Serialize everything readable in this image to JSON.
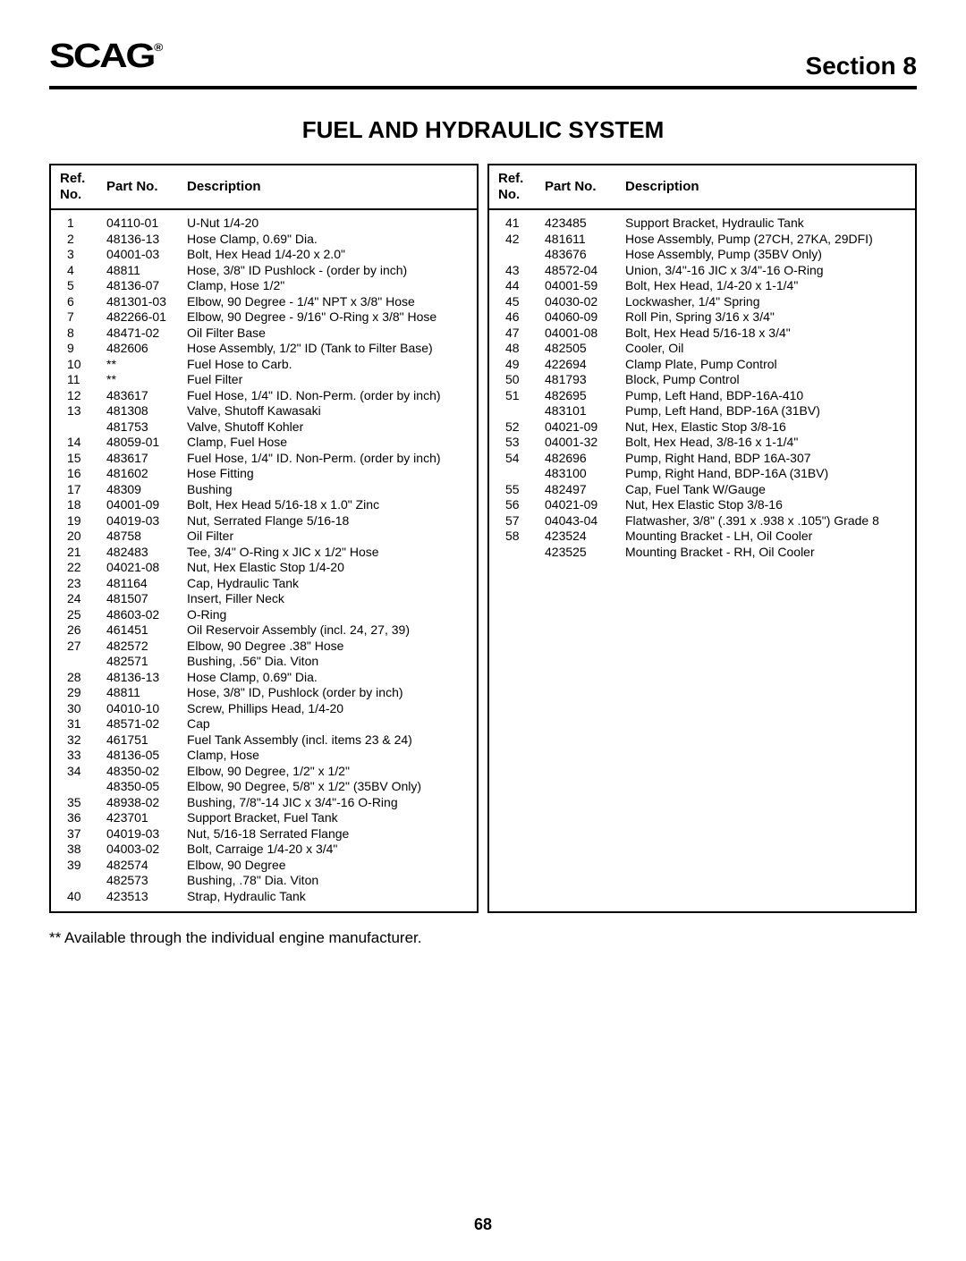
{
  "header": {
    "logo_text": "SCAG",
    "section_label": "Section 8"
  },
  "title": "FUEL AND HYDRAULIC SYSTEM",
  "columns_header": {
    "ref": "Ref. No.",
    "part": "Part No.",
    "desc": "Description"
  },
  "left_rows": [
    {
      "ref": "1",
      "part": "04110-01",
      "desc": "U-Nut 1/4-20"
    },
    {
      "ref": "2",
      "part": "48136-13",
      "desc": "Hose Clamp, 0.69\" Dia."
    },
    {
      "ref": "3",
      "part": "04001-03",
      "desc": "Bolt, Hex Head 1/4-20 x 2.0\""
    },
    {
      "ref": "4",
      "part": "48811",
      "desc": "Hose, 3/8\" ID Pushlock - (order by inch)"
    },
    {
      "ref": "5",
      "part": "48136-07",
      "desc": "Clamp, Hose 1/2\""
    },
    {
      "ref": "6",
      "part": "481301-03",
      "desc": "Elbow, 90 Degree - 1/4\" NPT x 3/8\" Hose"
    },
    {
      "ref": "7",
      "part": "482266-01",
      "desc": "Elbow, 90 Degree - 9/16\" O-Ring x 3/8\" Hose"
    },
    {
      "ref": "8",
      "part": "48471-02",
      "desc": "Oil Filter Base"
    },
    {
      "ref": "9",
      "part": "482606",
      "desc": "Hose Assembly, 1/2\" ID (Tank to Filter Base)"
    },
    {
      "ref": "10",
      "part": "**",
      "desc": "Fuel Hose to Carb."
    },
    {
      "ref": "11",
      "part": "**",
      "desc": "Fuel Filter"
    },
    {
      "ref": "12",
      "part": "483617",
      "desc": "Fuel Hose, 1/4\" ID. Non-Perm. (order by inch)"
    },
    {
      "ref": "13",
      "part": "481308",
      "desc": "Valve, Shutoff Kawasaki"
    },
    {
      "ref": "",
      "part": "481753",
      "desc": "Valve, Shutoff Kohler"
    },
    {
      "ref": "14",
      "part": "48059-01",
      "desc": "Clamp, Fuel Hose"
    },
    {
      "ref": "15",
      "part": "483617",
      "desc": "Fuel Hose, 1/4\" ID. Non-Perm. (order by inch)"
    },
    {
      "ref": "16",
      "part": "481602",
      "desc": "Hose Fitting"
    },
    {
      "ref": "17",
      "part": "48309",
      "desc": "Bushing"
    },
    {
      "ref": "18",
      "part": "04001-09",
      "desc": "Bolt, Hex Head 5/16-18 x 1.0\" Zinc"
    },
    {
      "ref": "19",
      "part": "04019-03",
      "desc": "Nut, Serrated Flange 5/16-18"
    },
    {
      "ref": "20",
      "part": "48758",
      "desc": "Oil Filter"
    },
    {
      "ref": "21",
      "part": "482483",
      "desc": "Tee, 3/4\" O-Ring x JIC x 1/2\" Hose"
    },
    {
      "ref": "22",
      "part": "04021-08",
      "desc": "Nut, Hex Elastic Stop 1/4-20"
    },
    {
      "ref": "23",
      "part": "481164",
      "desc": "Cap, Hydraulic Tank"
    },
    {
      "ref": "24",
      "part": "481507",
      "desc": "Insert, Filler Neck"
    },
    {
      "ref": "25",
      "part": "48603-02",
      "desc": "O-Ring"
    },
    {
      "ref": "26",
      "part": "461451",
      "desc": "Oil Reservoir Assembly (incl. 24, 27, 39)"
    },
    {
      "ref": "27",
      "part": "482572",
      "desc": "Elbow, 90 Degree .38\" Hose"
    },
    {
      "ref": "",
      "part": "482571",
      "desc": "Bushing, .56\" Dia. Viton"
    },
    {
      "ref": "28",
      "part": "48136-13",
      "desc": "Hose Clamp, 0.69\" Dia."
    },
    {
      "ref": "29",
      "part": "48811",
      "desc": "Hose, 3/8\" ID, Pushlock (order by inch)"
    },
    {
      "ref": "30",
      "part": "04010-10",
      "desc": "Screw, Phillips Head, 1/4-20"
    },
    {
      "ref": "31",
      "part": "48571-02",
      "desc": "Cap"
    },
    {
      "ref": "32",
      "part": "461751",
      "desc": "Fuel Tank Assembly (incl. items 23 & 24)"
    },
    {
      "ref": "33",
      "part": "48136-05",
      "desc": "Clamp, Hose"
    },
    {
      "ref": "34",
      "part": "48350-02",
      "desc": "Elbow, 90 Degree, 1/2\" x 1/2\""
    },
    {
      "ref": "",
      "part": "48350-05",
      "desc": "Elbow, 90 Degree, 5/8\" x 1/2\" (35BV Only)"
    },
    {
      "ref": "35",
      "part": "48938-02",
      "desc": "Bushing, 7/8\"-14 JIC x 3/4\"-16 O-Ring"
    },
    {
      "ref": "36",
      "part": "423701",
      "desc": "Support Bracket, Fuel Tank"
    },
    {
      "ref": "37",
      "part": "04019-03",
      "desc": "Nut, 5/16-18 Serrated Flange"
    },
    {
      "ref": "38",
      "part": "04003-02",
      "desc": "Bolt, Carraige 1/4-20 x 3/4\""
    },
    {
      "ref": "39",
      "part": "482574",
      "desc": "Elbow, 90 Degree"
    },
    {
      "ref": "",
      "part": "482573",
      "desc": "Bushing, .78\" Dia. Viton"
    },
    {
      "ref": "40",
      "part": "423513",
      "desc": "Strap, Hydraulic Tank"
    }
  ],
  "right_rows": [
    {
      "ref": "41",
      "part": "423485",
      "desc": "Support Bracket, Hydraulic Tank"
    },
    {
      "ref": "42",
      "part": "481611",
      "desc": "Hose Assembly, Pump (27CH, 27KA, 29DFI)"
    },
    {
      "ref": "",
      "part": "483676",
      "desc": "Hose Assembly, Pump (35BV Only)"
    },
    {
      "ref": "43",
      "part": "48572-04",
      "desc": "Union, 3/4\"-16 JIC x 3/4\"-16 O-Ring"
    },
    {
      "ref": "44",
      "part": "04001-59",
      "desc": "Bolt, Hex Head, 1/4-20 x 1-1/4\""
    },
    {
      "ref": "45",
      "part": "04030-02",
      "desc": "Lockwasher, 1/4\" Spring"
    },
    {
      "ref": "46",
      "part": "04060-09",
      "desc": "Roll Pin, Spring 3/16 x 3/4\""
    },
    {
      "ref": "47",
      "part": "04001-08",
      "desc": "Bolt, Hex Head 5/16-18 x 3/4\""
    },
    {
      "ref": "48",
      "part": "482505",
      "desc": "Cooler, Oil"
    },
    {
      "ref": "49",
      "part": "422694",
      "desc": "Clamp Plate, Pump Control"
    },
    {
      "ref": "50",
      "part": "481793",
      "desc": "Block, Pump Control"
    },
    {
      "ref": "51",
      "part": "482695",
      "desc": "Pump, Left Hand, BDP-16A-410"
    },
    {
      "ref": "",
      "part": "483101",
      "desc": "Pump, Left Hand, BDP-16A (31BV)"
    },
    {
      "ref": "52",
      "part": "04021-09",
      "desc": "Nut, Hex, Elastic Stop 3/8-16"
    },
    {
      "ref": "53",
      "part": "04001-32",
      "desc": "Bolt, Hex Head, 3/8-16 x 1-1/4\""
    },
    {
      "ref": "54",
      "part": "482696",
      "desc": "Pump, Right Hand, BDP 16A-307"
    },
    {
      "ref": "",
      "part": "483100",
      "desc": "Pump, Right Hand, BDP-16A (31BV)"
    },
    {
      "ref": "55",
      "part": "482497",
      "desc": "Cap, Fuel Tank W/Gauge"
    },
    {
      "ref": "56",
      "part": "04021-09",
      "desc": "Nut, Hex Elastic Stop 3/8-16"
    },
    {
      "ref": "57",
      "part": "04043-04",
      "desc": "Flatwasher, 3/8\" (.391 x .938 x .105\") Grade 8"
    },
    {
      "ref": "58",
      "part": "423524",
      "desc": "Mounting Bracket - LH, Oil Cooler"
    },
    {
      "ref": "",
      "part": "423525",
      "desc": "Mounting Bracket - RH, Oil Cooler"
    }
  ],
  "footnote": "**  Available through the individual engine manufacturer.",
  "page_number": "68"
}
